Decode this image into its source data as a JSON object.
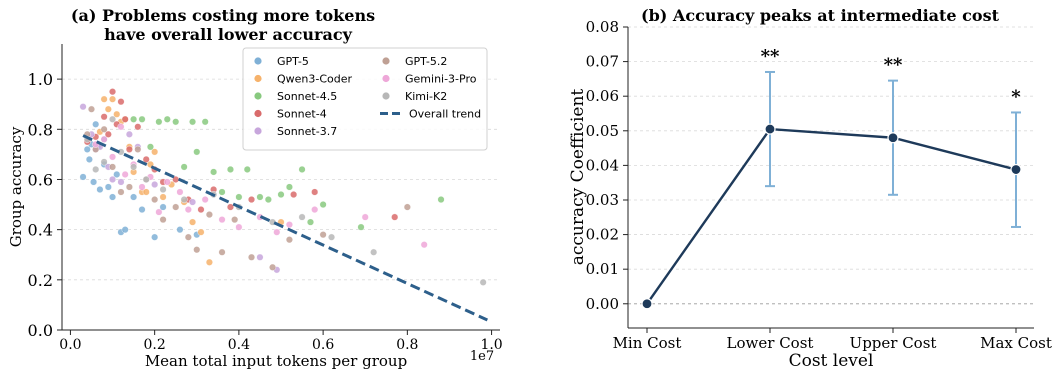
{
  "colors": {
    "GPT-5": "#7fb0d6",
    "Qwen3-Coder": "#f6b26b",
    "Sonnet-4.5": "#88c97f",
    "Sonnet-4": "#d96b6b",
    "Sonnet-3.7": "#c7a6dc",
    "GPT-5.2": "#bfa094",
    "Gemini-3-Pro": "#eea7d8",
    "Kimi-K2": "#b7b7b7",
    "trend": "#2d5f8b",
    "line_b": "#1e3a5a",
    "errbar_b": "#7fb0d6",
    "grid": "#d9d9d9"
  },
  "chart_data": [
    {
      "type": "scatter",
      "title_line1": "(a) Problems costing more tokens",
      "title_line2": "have overall lower accuracy",
      "xlabel": "Mean total input tokens per group",
      "ylabel": "Group accuracy",
      "x_multiplier_label": "1e7",
      "xlim": [
        -0.02,
        1.02
      ],
      "ylim": [
        0.0,
        1.14
      ],
      "x_ticks": [
        0.0,
        0.2,
        0.4,
        0.6,
        0.8,
        1.0
      ],
      "x_tick_labels": [
        "0.0",
        "0.2",
        "0.4",
        "0.6",
        "0.8",
        "1.0"
      ],
      "y_ticks": [
        0.0,
        0.2,
        0.4,
        0.6,
        0.8,
        1.0
      ],
      "y_tick_labels": [
        "0.0",
        "0.2",
        "0.4",
        "0.6",
        "0.8",
        "1.0"
      ],
      "grid": "horizontal dashed",
      "legend_position": "top-right",
      "legend": [
        "GPT-5",
        "Qwen3-Coder",
        "Sonnet-4.5",
        "Sonnet-4",
        "Sonnet-3.7",
        "GPT-5.2",
        "Gemini-3-Pro",
        "Kimi-K2",
        "Overall trend"
      ],
      "trend": {
        "name": "Overall trend",
        "x": [
          0.03,
          0.99
        ],
        "y": [
          0.775,
          0.04
        ]
      },
      "series": [
        {
          "name": "GPT-5",
          "x": [
            0.03,
            0.04,
            0.045,
            0.05,
            0.055,
            0.06,
            0.065,
            0.07,
            0.08,
            0.08,
            0.09,
            0.1,
            0.11,
            0.12,
            0.13,
            0.15,
            0.17,
            0.2,
            0.22,
            0.26,
            0.3
          ],
          "y": [
            0.61,
            0.72,
            0.68,
            0.74,
            0.59,
            0.82,
            0.73,
            0.56,
            0.66,
            0.76,
            0.57,
            0.53,
            0.62,
            0.39,
            0.4,
            0.53,
            0.48,
            0.37,
            0.49,
            0.4,
            0.38
          ]
        },
        {
          "name": "Qwen3-Coder",
          "x": [
            0.07,
            0.08,
            0.09,
            0.1,
            0.11,
            0.12,
            0.13,
            0.14,
            0.15,
            0.17,
            0.18,
            0.19,
            0.2,
            0.22,
            0.24,
            0.27,
            0.29,
            0.31,
            0.33,
            0.5
          ],
          "y": [
            0.79,
            0.92,
            0.88,
            0.92,
            0.86,
            0.83,
            0.84,
            0.73,
            0.63,
            0.55,
            0.55,
            0.66,
            0.71,
            0.53,
            0.58,
            0.51,
            0.43,
            0.39,
            0.27,
            0.43
          ]
        },
        {
          "name": "Sonnet-4.5",
          "x": [
            0.15,
            0.17,
            0.19,
            0.21,
            0.23,
            0.25,
            0.27,
            0.29,
            0.3,
            0.32,
            0.34,
            0.36,
            0.38,
            0.4,
            0.42,
            0.45,
            0.47,
            0.5,
            0.52,
            0.55,
            0.57,
            0.6,
            0.69,
            0.88
          ],
          "y": [
            0.84,
            0.84,
            0.73,
            0.83,
            0.84,
            0.83,
            0.65,
            0.83,
            0.71,
            0.83,
            0.63,
            0.55,
            0.64,
            0.53,
            0.64,
            0.53,
            0.52,
            0.54,
            0.57,
            0.64,
            0.43,
            0.5,
            0.41,
            0.52
          ]
        },
        {
          "name": "Sonnet-4",
          "x": [
            0.04,
            0.06,
            0.08,
            0.09,
            0.1,
            0.11,
            0.12,
            0.13,
            0.14,
            0.16,
            0.18,
            0.2,
            0.22,
            0.25,
            0.28,
            0.31,
            0.34,
            0.38,
            0.43,
            0.53,
            0.58,
            0.77
          ],
          "y": [
            0.75,
            0.77,
            0.85,
            0.78,
            0.95,
            0.82,
            0.91,
            0.84,
            0.72,
            0.81,
            0.68,
            0.64,
            0.59,
            0.6,
            0.52,
            0.48,
            0.56,
            0.49,
            0.52,
            0.54,
            0.55,
            0.45
          ]
        },
        {
          "name": "Sonnet-3.7",
          "x": [
            0.03,
            0.05,
            0.06,
            0.07,
            0.09,
            0.1,
            0.12,
            0.14,
            0.16,
            0.2,
            0.29,
            0.45,
            0.49
          ],
          "y": [
            0.89,
            0.78,
            0.72,
            0.73,
            0.65,
            0.6,
            0.59,
            0.78,
            0.73,
            0.58,
            0.51,
            0.29,
            0.24
          ]
        },
        {
          "name": "GPT-5.2",
          "x": [
            0.04,
            0.05,
            0.06,
            0.08,
            0.1,
            0.12,
            0.14,
            0.16,
            0.18,
            0.2,
            0.22,
            0.25,
            0.28,
            0.3,
            0.33,
            0.36,
            0.39,
            0.43,
            0.48,
            0.52,
            0.6,
            0.8
          ],
          "y": [
            0.78,
            0.88,
            0.72,
            0.8,
            0.65,
            0.55,
            0.57,
            0.72,
            0.6,
            0.52,
            0.44,
            0.49,
            0.37,
            0.32,
            0.46,
            0.31,
            0.44,
            0.29,
            0.25,
            0.36,
            0.38,
            0.49
          ]
        },
        {
          "name": "Gemini-3-Pro",
          "x": [
            0.06,
            0.08,
            0.1,
            0.12,
            0.13,
            0.15,
            0.17,
            0.19,
            0.21,
            0.23,
            0.26,
            0.28,
            0.32,
            0.36,
            0.4,
            0.45,
            0.49,
            0.52,
            0.58,
            0.7,
            0.84
          ],
          "y": [
            0.74,
            0.76,
            0.69,
            0.81,
            0.62,
            0.66,
            0.57,
            0.61,
            0.47,
            0.59,
            0.55,
            0.48,
            0.52,
            0.44,
            0.41,
            0.45,
            0.39,
            0.42,
            0.48,
            0.45,
            0.34
          ]
        },
        {
          "name": "Kimi-K2",
          "x": [
            0.04,
            0.06,
            0.08,
            0.1,
            0.12,
            0.15,
            0.18,
            0.22,
            0.27,
            0.34,
            0.4,
            0.48,
            0.55,
            0.62,
            0.72,
            0.98
          ],
          "y": [
            0.76,
            0.64,
            0.67,
            0.84,
            0.71,
            0.65,
            0.6,
            0.56,
            0.52,
            0.54,
            0.49,
            0.43,
            0.45,
            0.37,
            0.31,
            0.19
          ]
        }
      ]
    },
    {
      "type": "line",
      "title": "(b) Accuracy peaks at intermediate cost",
      "xlabel": "Cost level",
      "ylabel": "accuracy Coefficient",
      "categories": [
        "Min Cost",
        "Lower Cost",
        "Upper Cost",
        "Max Cost"
      ],
      "values": [
        0.0,
        0.0505,
        0.048,
        0.0388
      ],
      "error_low": [
        null,
        0.034,
        0.0315,
        0.0222
      ],
      "error_high": [
        null,
        0.067,
        0.0645,
        0.0553
      ],
      "significance": [
        "",
        "**",
        "**",
        "*"
      ],
      "ylim": [
        -0.007,
        0.08
      ],
      "y_ticks": [
        0.0,
        0.01,
        0.02,
        0.03,
        0.04,
        0.05,
        0.06,
        0.07,
        0.08
      ],
      "y_tick_labels": [
        "0.00",
        "0.01",
        "0.02",
        "0.03",
        "0.04",
        "0.05",
        "0.06",
        "0.07",
        "0.08"
      ],
      "reference_line": 0.0,
      "grid": "horizontal dashed"
    }
  ]
}
